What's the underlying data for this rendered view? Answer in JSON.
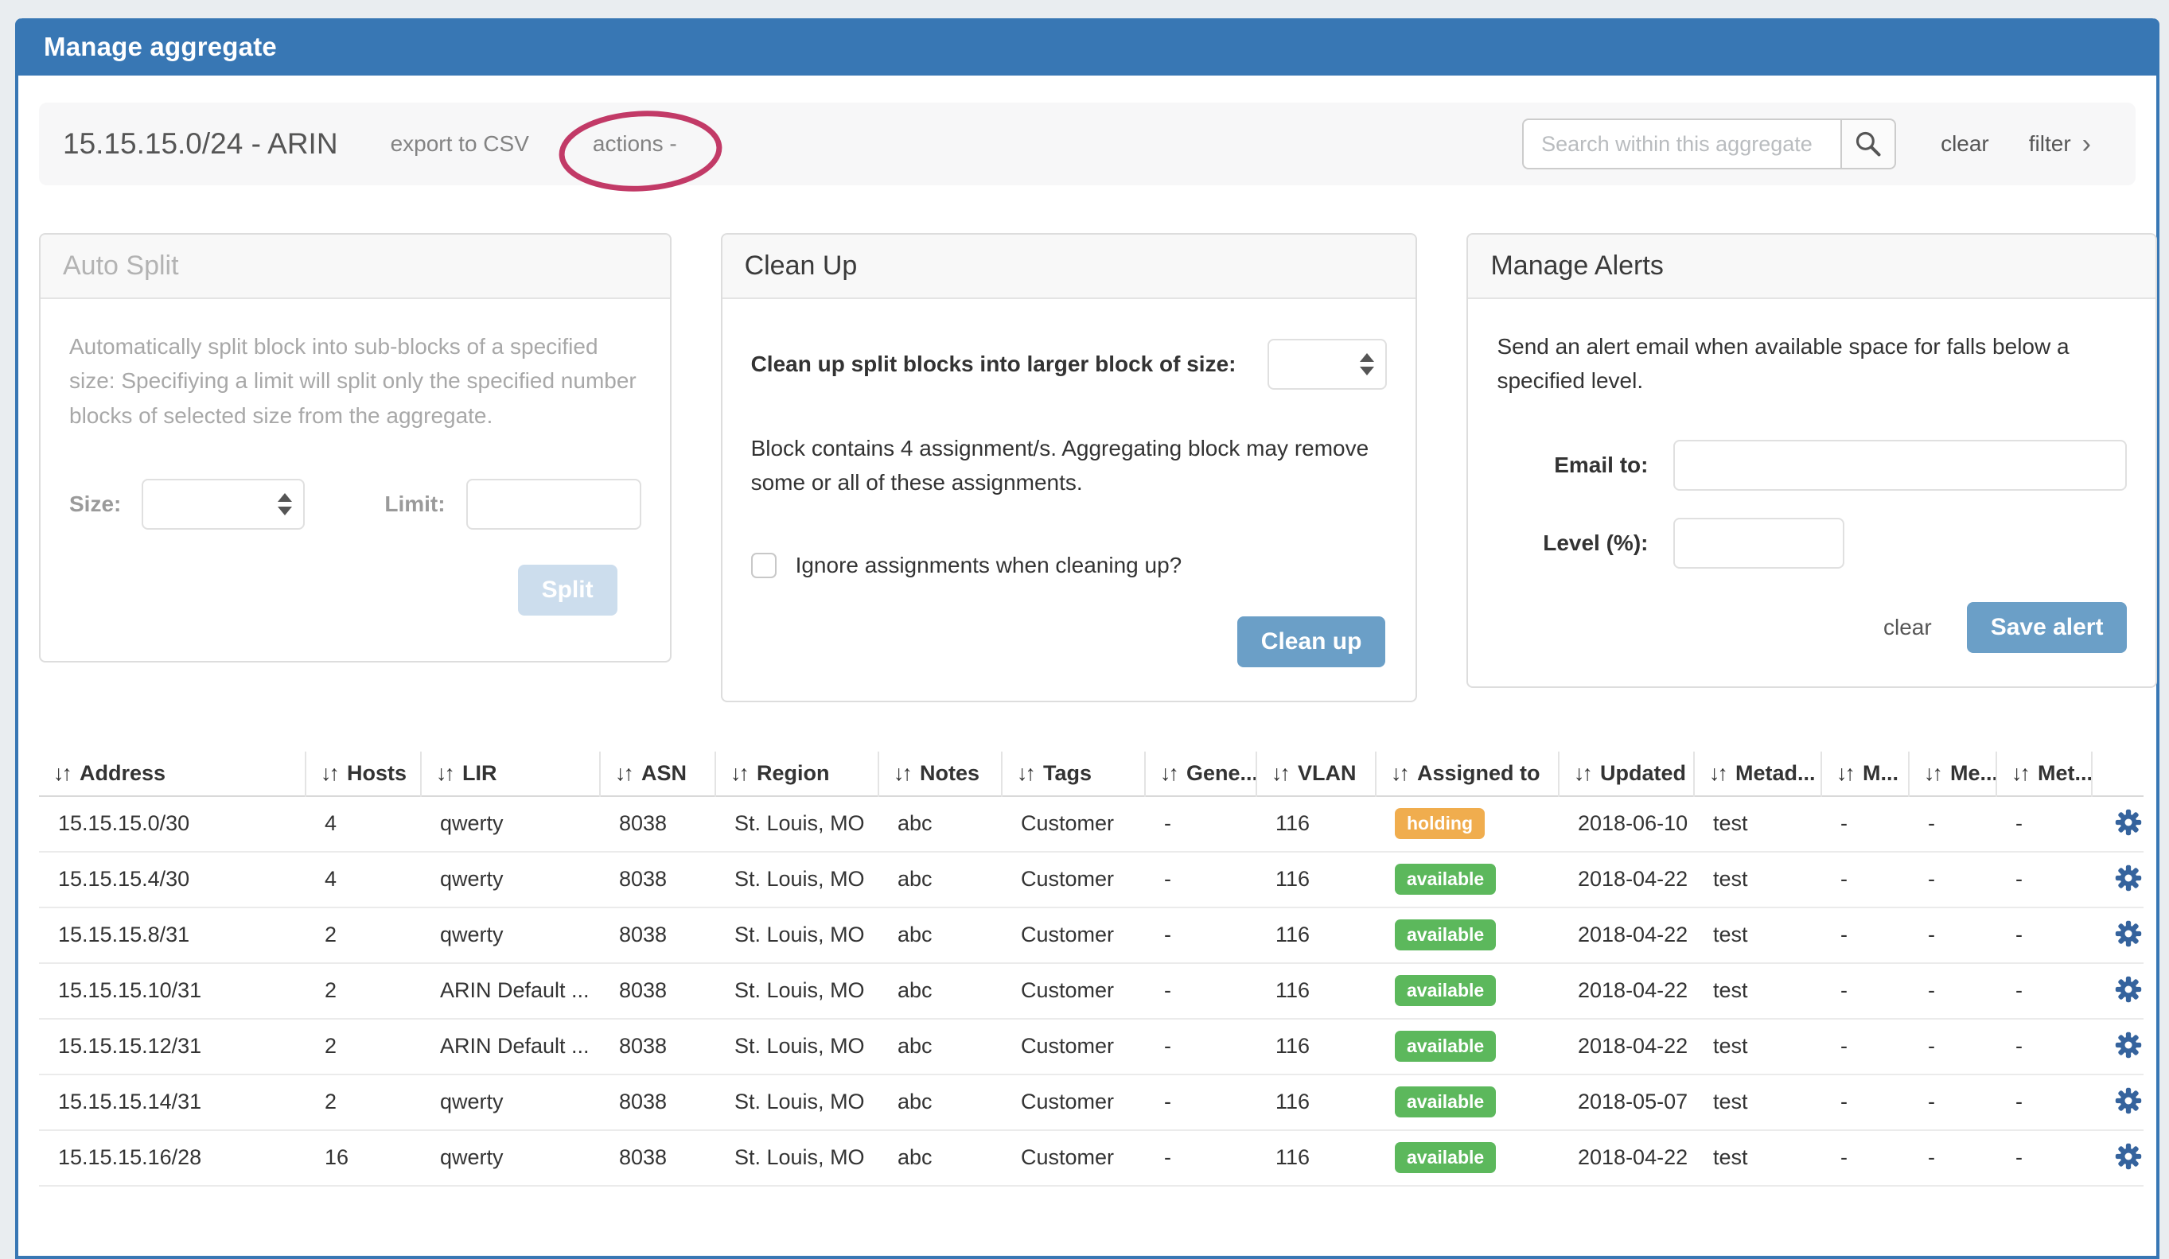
{
  "header": {
    "title": "Manage aggregate"
  },
  "toolbar": {
    "aggregate_title": "15.15.15.0/24 - ARIN",
    "export_csv": "export to CSV",
    "actions": "actions -",
    "search_placeholder": "Search within this aggregate",
    "clear": "clear",
    "filter": "filter",
    "filter_chevron": "›"
  },
  "auto_split": {
    "title": "Auto Split",
    "description": "Automatically split block into sub-blocks of a specified size: Specifiying a limit will split only the specified number blocks of selected size from the aggregate.",
    "size_label": "Size:",
    "limit_label": "Limit:",
    "split_button": "Split"
  },
  "clean_up": {
    "title": "Clean Up",
    "size_label": "Clean up split blocks into larger block of size:",
    "note": "Block contains 4 assignment/s. Aggregating block may remove some or all of these assignments.",
    "checkbox_label": "Ignore assignments when cleaning up?",
    "button": "Clean up"
  },
  "manage_alerts": {
    "title": "Manage Alerts",
    "description": "Send an alert email when available space for falls below a specified level.",
    "email_label": "Email to:",
    "level_label": "Level (%):",
    "clear": "clear",
    "save_button": "Save alert"
  },
  "table": {
    "sort_icon": "↓↑",
    "columns": [
      "Address",
      "Hosts",
      "LIR",
      "ASN",
      "Region",
      "Notes",
      "Tags",
      "Gene...",
      "VLAN",
      "Assigned to",
      "Updated",
      "Metad...",
      "M...",
      "Me...",
      "Met..."
    ],
    "status_colors": {
      "holding": "#f0ad4e",
      "available": "#5cb85c"
    },
    "rows": [
      {
        "address": "15.15.15.0/30",
        "hosts": "4",
        "lir": "qwerty",
        "asn": "8038",
        "region": "St. Louis, MO",
        "notes": "abc",
        "tags": "Customer",
        "gene": "-",
        "vlan": "116",
        "status": "holding",
        "updated": "2018-06-10",
        "metad": "test",
        "m1": "-",
        "m2": "-",
        "m3": "-"
      },
      {
        "address": "15.15.15.4/30",
        "hosts": "4",
        "lir": "qwerty",
        "asn": "8038",
        "region": "St. Louis, MO",
        "notes": "abc",
        "tags": "Customer",
        "gene": "-",
        "vlan": "116",
        "status": "available",
        "updated": "2018-04-22",
        "metad": "test",
        "m1": "-",
        "m2": "-",
        "m3": "-"
      },
      {
        "address": "15.15.15.8/31",
        "hosts": "2",
        "lir": "qwerty",
        "asn": "8038",
        "region": "St. Louis, MO",
        "notes": "abc",
        "tags": "Customer",
        "gene": "-",
        "vlan": "116",
        "status": "available",
        "updated": "2018-04-22",
        "metad": "test",
        "m1": "-",
        "m2": "-",
        "m3": "-"
      },
      {
        "address": "15.15.15.10/31",
        "hosts": "2",
        "lir": "ARIN Default ...",
        "asn": "8038",
        "region": "St. Louis, MO",
        "notes": "abc",
        "tags": "Customer",
        "gene": "-",
        "vlan": "116",
        "status": "available",
        "updated": "2018-04-22",
        "metad": "test",
        "m1": "-",
        "m2": "-",
        "m3": "-"
      },
      {
        "address": "15.15.15.12/31",
        "hosts": "2",
        "lir": "ARIN Default ...",
        "asn": "8038",
        "region": "St. Louis, MO",
        "notes": "abc",
        "tags": "Customer",
        "gene": "-",
        "vlan": "116",
        "status": "available",
        "updated": "2018-04-22",
        "metad": "test",
        "m1": "-",
        "m2": "-",
        "m3": "-"
      },
      {
        "address": "15.15.15.14/31",
        "hosts": "2",
        "lir": "qwerty",
        "asn": "8038",
        "region": "St. Louis, MO",
        "notes": "abc",
        "tags": "Customer",
        "gene": "-",
        "vlan": "116",
        "status": "available",
        "updated": "2018-05-07",
        "metad": "test",
        "m1": "-",
        "m2": "-",
        "m3": "-"
      },
      {
        "address": "15.15.15.16/28",
        "hosts": "16",
        "lir": "qwerty",
        "asn": "8038",
        "region": "St. Louis, MO",
        "notes": "abc",
        "tags": "Customer",
        "gene": "-",
        "vlan": "116",
        "status": "available",
        "updated": "2018-04-22",
        "metad": "test",
        "m1": "-",
        "m2": "-",
        "m3": "-"
      }
    ]
  },
  "annotation": {
    "color": "#c23a67"
  },
  "colors": {
    "accent_blue": "#3877b4",
    "button_blue": "#6b9fc7",
    "gear_blue": "#35639d"
  }
}
